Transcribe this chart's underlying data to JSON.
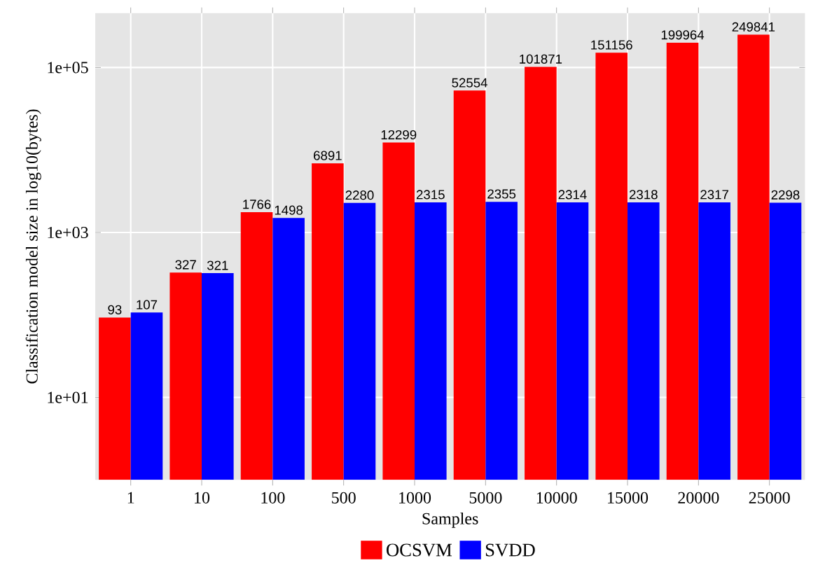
{
  "chart_data": {
    "type": "bar",
    "xlabel": "Samples",
    "ylabel": "Classification model size in log10(bytes)",
    "categories": [
      "1",
      "10",
      "100",
      "500",
      "1000",
      "5000",
      "10000",
      "15000",
      "20000",
      "25000"
    ],
    "series": [
      {
        "name": "OCSVM",
        "color": "#ff0000",
        "values": [
          93,
          327,
          1766,
          6891,
          12299,
          52554,
          101871,
          151156,
          199964,
          249841
        ]
      },
      {
        "name": "SVDD",
        "color": "#0000ff",
        "values": [
          107,
          321,
          1498,
          2280,
          2315,
          2355,
          2314,
          2318,
          2317,
          2298
        ]
      }
    ],
    "log": "y",
    "ylim": [
      1,
      457000
    ],
    "yticks": [
      {
        "value": 10,
        "label": "1e+01"
      },
      {
        "value": 1000,
        "label": "1e+03"
      },
      {
        "value": 100000,
        "label": "1e+05"
      }
    ],
    "grid": true,
    "legend": "bottom",
    "data_labels": true
  }
}
